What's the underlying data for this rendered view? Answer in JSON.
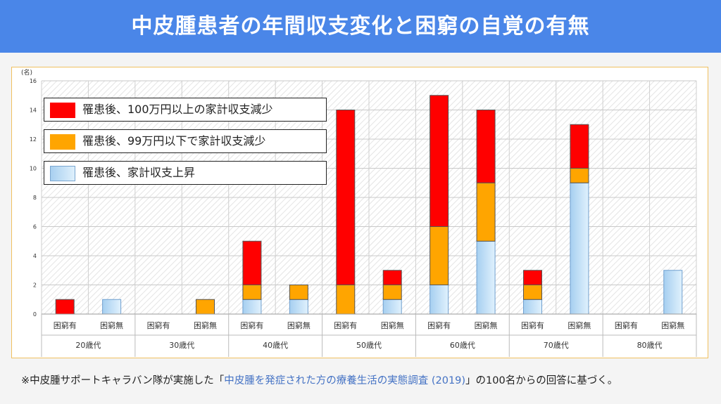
{
  "header": {
    "title": "中皮腫患者の年間収支変化と困窮の自覚の有無"
  },
  "legend": [
    {
      "label": "罹患後、100万円以上の家計収支減少",
      "color": "#ff0000"
    },
    {
      "label": "罹患後、99万円以下で家計収支減少",
      "color": "#ffa500"
    },
    {
      "label": "罹患後、家計収支上昇",
      "color": "#bcdff5"
    }
  ],
  "footnote": {
    "prefix": "※中皮腫サポートキャラバン隊が実施した「",
    "highlight": "中皮腫を発症された方の療養生活の実態調査 (2019)",
    "suffix": "」の100名からの回答に基づく。"
  },
  "chart_data": {
    "type": "bar",
    "stacked": true,
    "ylabel": "(名)",
    "ylim": [
      0,
      16
    ],
    "yticks": [
      0,
      2,
      4,
      6,
      8,
      10,
      12,
      14,
      16
    ],
    "grid": true,
    "legend_position": "top-left",
    "groups": [
      "20歳代",
      "30歳代",
      "40歳代",
      "50歳代",
      "60歳代",
      "70歳代",
      "80歳代"
    ],
    "categories": [
      "困窮有",
      "困窮無",
      "困窮有",
      "困窮無",
      "困窮有",
      "困窮無",
      "困窮有",
      "困窮無",
      "困窮有",
      "困窮無",
      "困窮有",
      "困窮無",
      "困窮有",
      "困窮無"
    ],
    "series": [
      {
        "name": "罹患後、家計収支上昇",
        "color": "#bcdff5",
        "values": [
          0,
          1,
          0,
          0,
          1,
          1,
          0,
          1,
          2,
          5,
          1,
          9,
          0,
          3
        ]
      },
      {
        "name": "罹患後、99万円以下で家計収支減少",
        "color": "#ffa500",
        "values": [
          0,
          0,
          0,
          1,
          1,
          1,
          2,
          1,
          4,
          4,
          1,
          1,
          0,
          0
        ]
      },
      {
        "name": "罹患後、100万円以上の家計収支減少",
        "color": "#ff0000",
        "values": [
          1,
          0,
          0,
          0,
          3,
          0,
          12,
          1,
          9,
          5,
          1,
          3,
          0,
          0
        ]
      }
    ]
  }
}
